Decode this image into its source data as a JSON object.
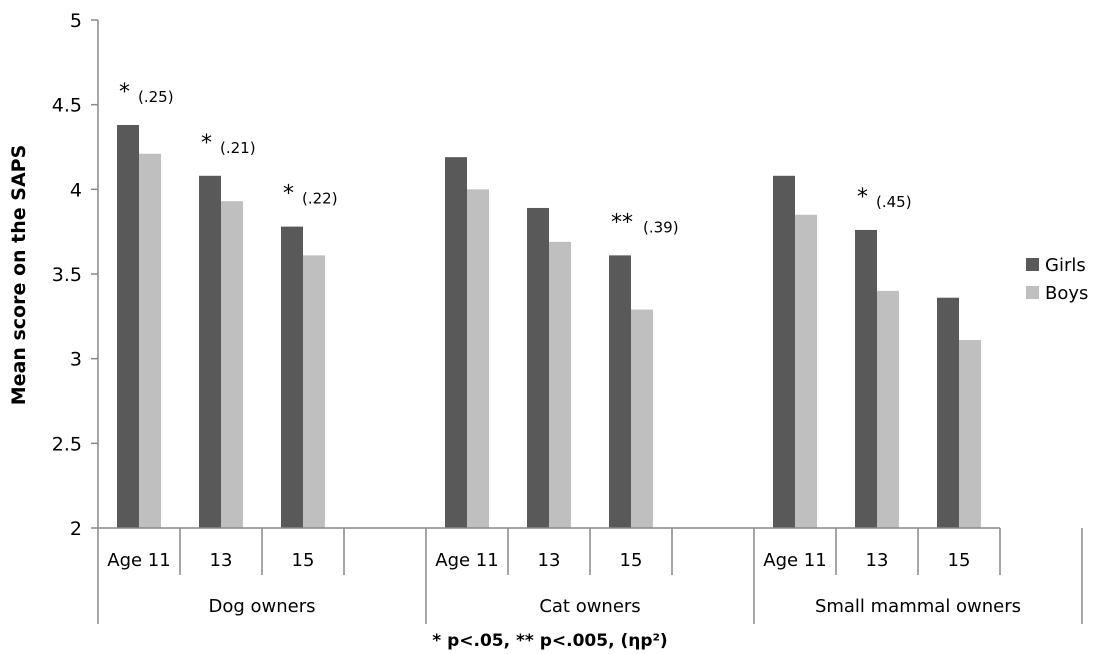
{
  "chart_data": {
    "type": "bar",
    "ylabel": "Mean score on the SAPS",
    "ylim": [
      2,
      5
    ],
    "yticks": [
      "2",
      "2.5",
      "3",
      "3.5",
      "4",
      "4.5",
      "5"
    ],
    "legend_position": "right",
    "grid": false,
    "colors": {
      "Girls": "#595959",
      "Boys": "#bfbfbf"
    },
    "groups": [
      {
        "label": "Dog owners",
        "categories": [
          "Age 11",
          "13",
          "15"
        ],
        "series": [
          {
            "name": "Girls",
            "values": [
              4.38,
              4.08,
              3.78
            ]
          },
          {
            "name": "Boys",
            "values": [
              4.21,
              3.93,
              3.61
            ]
          }
        ],
        "significance": [
          {
            "stars": "*",
            "effect": "(.25)"
          },
          {
            "stars": "*",
            "effect": "(.21)"
          },
          {
            "stars": "*",
            "effect": "(.22)"
          }
        ]
      },
      {
        "label": "Cat owners",
        "categories": [
          "Age 11",
          "13",
          "15"
        ],
        "series": [
          {
            "name": "Girls",
            "values": [
              4.19,
              3.89,
              3.61
            ]
          },
          {
            "name": "Boys",
            "values": [
              4.0,
              3.69,
              3.29
            ]
          }
        ],
        "significance": [
          null,
          null,
          {
            "stars": "**",
            "effect": "(.39)"
          }
        ]
      },
      {
        "label": "Small mammal owners",
        "categories": [
          "Age 11",
          "13",
          "15"
        ],
        "series": [
          {
            "name": "Girls",
            "values": [
              4.08,
              3.76,
              3.36
            ]
          },
          {
            "name": "Boys",
            "values": [
              3.85,
              3.4,
              3.11
            ]
          }
        ],
        "significance": [
          null,
          {
            "stars": "*",
            "effect": "(.45)"
          },
          null
        ]
      }
    ],
    "legend": [
      "Girls",
      "Boys"
    ],
    "footnote": "* p<.05, ** p<.005, (ηp²)"
  }
}
